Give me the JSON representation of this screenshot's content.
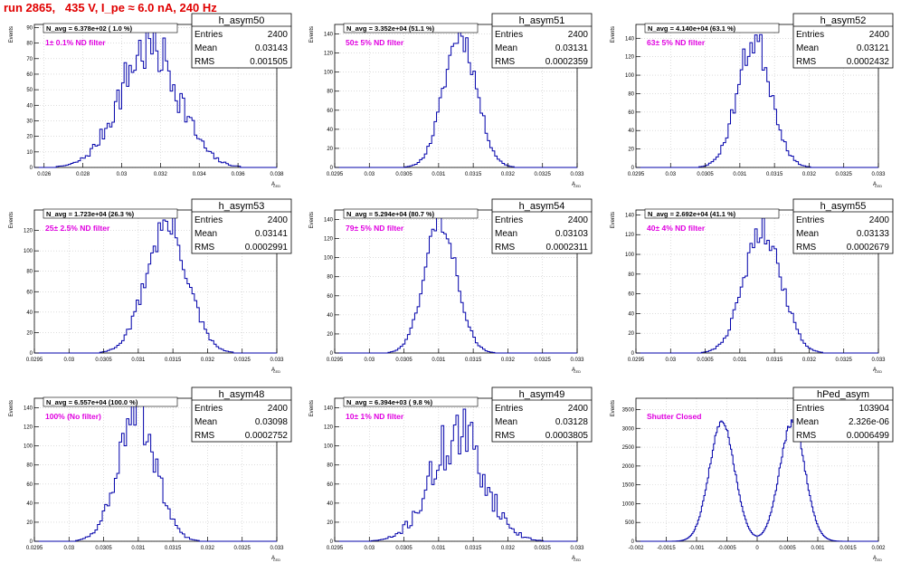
{
  "title": "run 2865,   435 V, I_pe ≈ 6.0 nA, 240 Hz",
  "colors": {
    "title": "#e00000",
    "histogram": "#0000aa",
    "filter_label": "#e000e0",
    "grid": "#c8c8c8"
  },
  "chart_data": [
    {
      "type": "histogram",
      "name": "h_asym50",
      "stats": {
        "entries": "2400",
        "mean": "0.03143",
        "rms": "0.001505"
      },
      "navg": "N_avg = 6.378e+02 ( 1.0 %)",
      "filter_label": "1± 0.1% ND filter",
      "xlabel": "A_LED",
      "ylabel": "Events",
      "grid": true,
      "xlim": [
        0.0255,
        0.038
      ],
      "xticks": [
        0.026,
        0.028,
        0.03,
        0.032,
        0.034,
        0.036,
        0.038
      ],
      "xtick_labels": [
        "0.026",
        "0.028",
        "0.03",
        "0.032",
        "0.034",
        "0.036",
        "0.038"
      ],
      "ylim": [
        0,
        92
      ],
      "yticks": [
        0,
        10,
        20,
        30,
        40,
        50,
        60,
        70,
        80,
        90
      ],
      "shape": {
        "mu": 0.03143,
        "sigma": 0.001505,
        "peak": 78,
        "noise": 0.18,
        "bins": 100,
        "seed": 7
      }
    },
    {
      "type": "histogram",
      "name": "h_asym51",
      "stats": {
        "entries": "2400",
        "mean": "0.03131",
        "rms": "0.0002359"
      },
      "navg": "N_avg = 3.352e+04 (51.1 %)",
      "filter_label": "50± 5% ND filter",
      "xlabel": "A_LED",
      "ylabel": "Events",
      "grid": true,
      "xlim": [
        0.0295,
        0.033
      ],
      "xticks": [
        0.0295,
        0.03,
        0.0305,
        0.031,
        0.0315,
        0.032,
        0.0325,
        0.033
      ],
      "xtick_labels": [
        "0.0295",
        "0.03",
        "0.0305",
        "0.031",
        "0.0315",
        "0.032",
        "0.0325",
        "0.033"
      ],
      "ylim": [
        0,
        150
      ],
      "yticks": [
        0,
        20,
        40,
        60,
        80,
        100,
        120,
        140
      ],
      "shape": {
        "mu": 0.03131,
        "sigma": 0.0002359,
        "peak": 140,
        "noise": 0.08,
        "bins": 100,
        "seed": 11
      }
    },
    {
      "type": "histogram",
      "name": "h_asym52",
      "stats": {
        "entries": "2400",
        "mean": "0.03121",
        "rms": "0.0002432"
      },
      "navg": "N_avg = 4.140e+04 (63.1 %)",
      "filter_label": "63± 5% ND filter",
      "xlabel": "A_LED",
      "ylabel": "Events",
      "grid": true,
      "xlim": [
        0.0295,
        0.033
      ],
      "xticks": [
        0.0295,
        0.03,
        0.0305,
        0.031,
        0.0315,
        0.032,
        0.0325,
        0.033
      ],
      "xtick_labels": [
        "0.0295",
        "0.03",
        "0.0305",
        "0.031",
        "0.0315",
        "0.032",
        "0.0325",
        "0.033"
      ],
      "ylim": [
        0,
        155
      ],
      "yticks": [
        0,
        20,
        40,
        60,
        80,
        100,
        120,
        140
      ],
      "shape": {
        "mu": 0.03121,
        "sigma": 0.0002432,
        "peak": 138,
        "noise": 0.1,
        "bins": 100,
        "seed": 23
      }
    },
    {
      "type": "histogram",
      "name": "h_asym53",
      "stats": {
        "entries": "2400",
        "mean": "0.03141",
        "rms": "0.0002991"
      },
      "navg": "N_avg = 1.723e+04 (26.3 %)",
      "filter_label": "25± 2.5% ND filter",
      "xlabel": "A_LED",
      "ylabel": "Events",
      "grid": true,
      "xlim": [
        0.0295,
        0.033
      ],
      "xticks": [
        0.0295,
        0.03,
        0.0305,
        0.031,
        0.0315,
        0.032,
        0.0325,
        0.033
      ],
      "xtick_labels": [
        "0.0295",
        "0.03",
        "0.0305",
        "0.031",
        "0.0315",
        "0.032",
        "0.0325",
        "0.033"
      ],
      "ylim": [
        0,
        140
      ],
      "yticks": [
        0,
        20,
        40,
        60,
        80,
        100,
        120
      ],
      "shape": {
        "mu": 0.03141,
        "sigma": 0.0002991,
        "peak": 125,
        "noise": 0.1,
        "bins": 100,
        "seed": 31
      }
    },
    {
      "type": "histogram",
      "name": "h_asym54",
      "stats": {
        "entries": "2400",
        "mean": "0.03103",
        "rms": "0.0002311"
      },
      "navg": "N_avg = 5.294e+04 (80.7 %)",
      "filter_label": "79± 5% ND filter",
      "xlabel": "A_LED",
      "ylabel": "Events",
      "grid": true,
      "xlim": [
        0.0295,
        0.033
      ],
      "xticks": [
        0.0295,
        0.03,
        0.0305,
        0.031,
        0.0315,
        0.032,
        0.0325,
        0.033
      ],
      "xtick_labels": [
        "0.0295",
        "0.03",
        "0.0305",
        "0.031",
        "0.0315",
        "0.032",
        "0.0325",
        "0.033"
      ],
      "ylim": [
        0,
        150
      ],
      "yticks": [
        0,
        20,
        40,
        60,
        80,
        100,
        120,
        140
      ],
      "shape": {
        "mu": 0.03103,
        "sigma": 0.0002311,
        "peak": 140,
        "noise": 0.07,
        "bins": 100,
        "seed": 43
      }
    },
    {
      "type": "histogram",
      "name": "h_asym55",
      "stats": {
        "entries": "2400",
        "mean": "0.03133",
        "rms": "0.0002679"
      },
      "navg": "N_avg = 2.692e+04 (41.1 %)",
      "filter_label": "40± 4% ND filter",
      "xlabel": "A_LED",
      "ylabel": "Events",
      "grid": true,
      "xlim": [
        0.0295,
        0.033
      ],
      "xticks": [
        0.0295,
        0.03,
        0.0305,
        0.031,
        0.0315,
        0.032,
        0.0325,
        0.033
      ],
      "xtick_labels": [
        "0.0295",
        "0.03",
        "0.0305",
        "0.031",
        "0.0315",
        "0.032",
        "0.0325",
        "0.033"
      ],
      "ylim": [
        0,
        145
      ],
      "yticks": [
        0,
        20,
        40,
        60,
        80,
        100,
        120,
        140
      ],
      "shape": {
        "mu": 0.03133,
        "sigma": 0.0002679,
        "peak": 128,
        "noise": 0.09,
        "bins": 100,
        "seed": 57
      }
    },
    {
      "type": "histogram",
      "name": "h_asym48",
      "stats": {
        "entries": "2400",
        "mean": "0.03098",
        "rms": "0.0002752"
      },
      "navg": "N_avg = 6.557e+04 (100.0 %)",
      "filter_label": "100% (No filter)",
      "xlabel": "A_LED",
      "ylabel": "Events",
      "grid": true,
      "xlim": [
        0.0295,
        0.033
      ],
      "xticks": [
        0.0295,
        0.03,
        0.0305,
        0.031,
        0.0315,
        0.032,
        0.0325,
        0.033
      ],
      "xtick_labels": [
        "0.0295",
        "0.03",
        "0.0305",
        "0.031",
        "0.0315",
        "0.032",
        "0.0325",
        "0.033"
      ],
      "ylim": [
        0,
        150
      ],
      "yticks": [
        0,
        20,
        40,
        60,
        80,
        100,
        120,
        140
      ],
      "shape": {
        "mu": 0.03098,
        "sigma": 0.0002752,
        "peak": 130,
        "noise": 0.14,
        "bins": 100,
        "seed": 61
      }
    },
    {
      "type": "histogram",
      "name": "h_asym49",
      "stats": {
        "entries": "2400",
        "mean": "0.03128",
        "rms": "0.0003805"
      },
      "navg": "N_avg = 6.394e+03 ( 9.8 %)",
      "filter_label": "10± 1% ND filter",
      "xlabel": "A_LED",
      "ylabel": "Events",
      "grid": true,
      "xlim": [
        0.0295,
        0.033
      ],
      "xticks": [
        0.0295,
        0.03,
        0.0305,
        0.031,
        0.0315,
        0.032,
        0.0325,
        0.033
      ],
      "xtick_labels": [
        "0.0295",
        "0.03",
        "0.0305",
        "0.031",
        "0.0315",
        "0.032",
        "0.0325",
        "0.033"
      ],
      "ylim": [
        0,
        150
      ],
      "yticks": [
        0,
        20,
        40,
        60,
        80,
        100,
        120,
        140
      ],
      "shape": {
        "mu": 0.03128,
        "sigma": 0.0003805,
        "peak": 112,
        "noise": 0.22,
        "bins": 100,
        "seed": 71
      }
    },
    {
      "type": "histogram",
      "name": "hPed_asym",
      "stats": {
        "entries": "103904",
        "mean": "2.326e-06",
        "rms": "0.0006499"
      },
      "navg": "",
      "filter_label": "Shutter Closed",
      "xlabel": "A_LED",
      "ylabel": "Events",
      "grid": true,
      "xlim": [
        -0.002,
        0.002
      ],
      "xticks": [
        -0.002,
        -0.0015,
        -0.001,
        -0.0005,
        0,
        0.0005,
        0.001,
        0.0015,
        0.002
      ],
      "xtick_labels": [
        "-0.002",
        "-0.0015",
        "-0.001",
        "-0.0005",
        "0",
        "0.0005",
        "0.001",
        "0.0015",
        "0.002"
      ],
      "ylim": [
        0,
        3800
      ],
      "yticks": [
        0,
        500,
        1000,
        1500,
        2000,
        2500,
        3000,
        3500
      ],
      "shape": {
        "bimodal": true,
        "mus": [
          -0.00058,
          0.00058
        ],
        "sigma": 0.00021,
        "peak": 3150,
        "noise": 0.02,
        "bins": 200,
        "seed": 83
      }
    }
  ]
}
